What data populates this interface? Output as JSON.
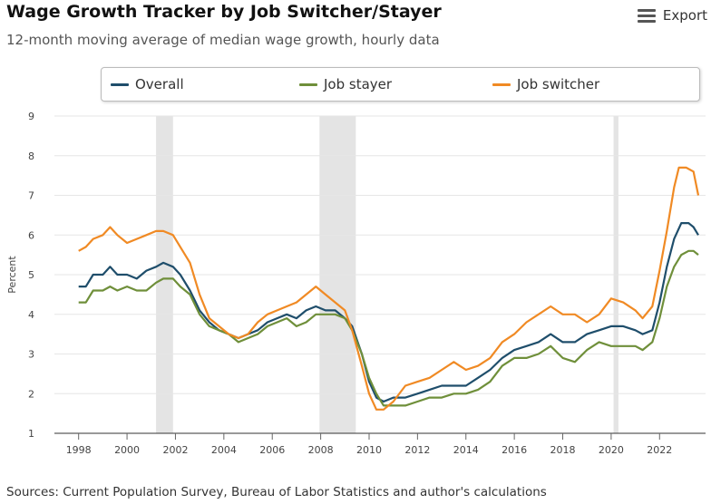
{
  "header": {
    "title": "Wage Growth Tracker by Job Switcher/Stayer",
    "subtitle": "12-month moving average of median wage growth, hourly data",
    "export_label": "Export"
  },
  "footer": {
    "source": "Sources: Current Population Survey, Bureau of Labor Statistics and author's calculations"
  },
  "colors": {
    "overall": "#1f4e6b",
    "stayer": "#6f8f3a",
    "switcher": "#f08a24",
    "recession": "#e4e4e4"
  },
  "chart_data": {
    "type": "line",
    "title": "Wage Growth Tracker by Job Switcher/Stayer",
    "subtitle": "12-month moving average of median wage growth, hourly data",
    "xlabel": "",
    "ylabel": "Percent",
    "xlim": [
      1997,
      2023.9
    ],
    "ylim": [
      1,
      9
    ],
    "x_ticks": [
      1998,
      2000,
      2002,
      2004,
      2006,
      2008,
      2010,
      2012,
      2014,
      2016,
      2018,
      2020,
      2022
    ],
    "y_ticks": [
      1,
      2,
      3,
      4,
      5,
      6,
      7,
      8,
      9
    ],
    "legend_position": "top",
    "recessions": [
      [
        2001.2,
        2001.9
      ],
      [
        2007.95,
        2009.45
      ],
      [
        2020.1,
        2020.3
      ]
    ],
    "series": [
      {
        "name": "Overall",
        "color": "#1f4e6b",
        "points": [
          [
            1998,
            4.7
          ],
          [
            1998.3,
            4.7
          ],
          [
            1998.6,
            5.0
          ],
          [
            1999,
            5.0
          ],
          [
            1999.3,
            5.2
          ],
          [
            1999.6,
            5.0
          ],
          [
            2000,
            5.0
          ],
          [
            2000.4,
            4.9
          ],
          [
            2000.8,
            5.1
          ],
          [
            2001.2,
            5.2
          ],
          [
            2001.5,
            5.3
          ],
          [
            2001.9,
            5.2
          ],
          [
            2002.2,
            5.0
          ],
          [
            2002.6,
            4.6
          ],
          [
            2003,
            4.1
          ],
          [
            2003.4,
            3.8
          ],
          [
            2003.8,
            3.6
          ],
          [
            2004.2,
            3.5
          ],
          [
            2004.6,
            3.4
          ],
          [
            2005,
            3.5
          ],
          [
            2005.4,
            3.6
          ],
          [
            2005.8,
            3.8
          ],
          [
            2006.2,
            3.9
          ],
          [
            2006.6,
            4.0
          ],
          [
            2007,
            3.9
          ],
          [
            2007.4,
            4.1
          ],
          [
            2007.8,
            4.2
          ],
          [
            2008.2,
            4.1
          ],
          [
            2008.6,
            4.1
          ],
          [
            2009,
            3.9
          ],
          [
            2009.3,
            3.7
          ],
          [
            2009.7,
            3.0
          ],
          [
            2010,
            2.3
          ],
          [
            2010.3,
            1.9
          ],
          [
            2010.6,
            1.8
          ],
          [
            2011,
            1.9
          ],
          [
            2011.5,
            1.9
          ],
          [
            2012,
            2.0
          ],
          [
            2012.5,
            2.1
          ],
          [
            2013,
            2.2
          ],
          [
            2013.5,
            2.2
          ],
          [
            2014,
            2.2
          ],
          [
            2014.5,
            2.4
          ],
          [
            2015,
            2.6
          ],
          [
            2015.5,
            2.9
          ],
          [
            2016,
            3.1
          ],
          [
            2016.5,
            3.2
          ],
          [
            2017,
            3.3
          ],
          [
            2017.5,
            3.5
          ],
          [
            2018,
            3.3
          ],
          [
            2018.5,
            3.3
          ],
          [
            2019,
            3.5
          ],
          [
            2019.5,
            3.6
          ],
          [
            2020,
            3.7
          ],
          [
            2020.5,
            3.7
          ],
          [
            2021,
            3.6
          ],
          [
            2021.3,
            3.5
          ],
          [
            2021.7,
            3.6
          ],
          [
            2022,
            4.3
          ],
          [
            2022.3,
            5.2
          ],
          [
            2022.6,
            5.9
          ],
          [
            2022.9,
            6.3
          ],
          [
            2023.2,
            6.3
          ],
          [
            2023.4,
            6.2
          ],
          [
            2023.6,
            6.0
          ]
        ]
      },
      {
        "name": "Job stayer",
        "color": "#6f8f3a",
        "points": [
          [
            1998,
            4.3
          ],
          [
            1998.3,
            4.3
          ],
          [
            1998.6,
            4.6
          ],
          [
            1999,
            4.6
          ],
          [
            1999.3,
            4.7
          ],
          [
            1999.6,
            4.6
          ],
          [
            2000,
            4.7
          ],
          [
            2000.4,
            4.6
          ],
          [
            2000.8,
            4.6
          ],
          [
            2001.2,
            4.8
          ],
          [
            2001.5,
            4.9
          ],
          [
            2001.9,
            4.9
          ],
          [
            2002.2,
            4.7
          ],
          [
            2002.6,
            4.5
          ],
          [
            2003,
            4.0
          ],
          [
            2003.4,
            3.7
          ],
          [
            2003.8,
            3.6
          ],
          [
            2004.2,
            3.5
          ],
          [
            2004.6,
            3.3
          ],
          [
            2005,
            3.4
          ],
          [
            2005.4,
            3.5
          ],
          [
            2005.8,
            3.7
          ],
          [
            2006.2,
            3.8
          ],
          [
            2006.6,
            3.9
          ],
          [
            2007,
            3.7
          ],
          [
            2007.4,
            3.8
          ],
          [
            2007.8,
            4.0
          ],
          [
            2008.2,
            4.0
          ],
          [
            2008.6,
            4.0
          ],
          [
            2009,
            3.9
          ],
          [
            2009.3,
            3.6
          ],
          [
            2009.7,
            3.0
          ],
          [
            2010,
            2.4
          ],
          [
            2010.3,
            2.0
          ],
          [
            2010.6,
            1.7
          ],
          [
            2011,
            1.7
          ],
          [
            2011.5,
            1.7
          ],
          [
            2012,
            1.8
          ],
          [
            2012.5,
            1.9
          ],
          [
            2013,
            1.9
          ],
          [
            2013.5,
            2.0
          ],
          [
            2014,
            2.0
          ],
          [
            2014.5,
            2.1
          ],
          [
            2015,
            2.3
          ],
          [
            2015.5,
            2.7
          ],
          [
            2016,
            2.9
          ],
          [
            2016.5,
            2.9
          ],
          [
            2017,
            3.0
          ],
          [
            2017.5,
            3.2
          ],
          [
            2018,
            2.9
          ],
          [
            2018.5,
            2.8
          ],
          [
            2019,
            3.1
          ],
          [
            2019.5,
            3.3
          ],
          [
            2020,
            3.2
          ],
          [
            2020.5,
            3.2
          ],
          [
            2021,
            3.2
          ],
          [
            2021.3,
            3.1
          ],
          [
            2021.7,
            3.3
          ],
          [
            2022,
            3.9
          ],
          [
            2022.3,
            4.7
          ],
          [
            2022.6,
            5.2
          ],
          [
            2022.9,
            5.5
          ],
          [
            2023.2,
            5.6
          ],
          [
            2023.4,
            5.6
          ],
          [
            2023.6,
            5.5
          ]
        ]
      },
      {
        "name": "Job switcher",
        "color": "#f08a24",
        "points": [
          [
            1998,
            5.6
          ],
          [
            1998.3,
            5.7
          ],
          [
            1998.6,
            5.9
          ],
          [
            1999,
            6.0
          ],
          [
            1999.3,
            6.2
          ],
          [
            1999.6,
            6.0
          ],
          [
            2000,
            5.8
          ],
          [
            2000.4,
            5.9
          ],
          [
            2000.8,
            6.0
          ],
          [
            2001.2,
            6.1
          ],
          [
            2001.5,
            6.1
          ],
          [
            2001.9,
            6.0
          ],
          [
            2002.2,
            5.7
          ],
          [
            2002.6,
            5.3
          ],
          [
            2003,
            4.5
          ],
          [
            2003.4,
            3.9
          ],
          [
            2003.8,
            3.7
          ],
          [
            2004.2,
            3.5
          ],
          [
            2004.6,
            3.4
          ],
          [
            2005,
            3.5
          ],
          [
            2005.4,
            3.8
          ],
          [
            2005.8,
            4.0
          ],
          [
            2006.2,
            4.1
          ],
          [
            2006.6,
            4.2
          ],
          [
            2007,
            4.3
          ],
          [
            2007.4,
            4.5
          ],
          [
            2007.8,
            4.7
          ],
          [
            2008.2,
            4.5
          ],
          [
            2008.6,
            4.3
          ],
          [
            2009,
            4.1
          ],
          [
            2009.3,
            3.6
          ],
          [
            2009.7,
            2.7
          ],
          [
            2010,
            2.0
          ],
          [
            2010.3,
            1.6
          ],
          [
            2010.6,
            1.6
          ],
          [
            2011,
            1.8
          ],
          [
            2011.5,
            2.2
          ],
          [
            2012,
            2.3
          ],
          [
            2012.5,
            2.4
          ],
          [
            2013,
            2.6
          ],
          [
            2013.5,
            2.8
          ],
          [
            2014,
            2.6
          ],
          [
            2014.5,
            2.7
          ],
          [
            2015,
            2.9
          ],
          [
            2015.5,
            3.3
          ],
          [
            2016,
            3.5
          ],
          [
            2016.5,
            3.8
          ],
          [
            2017,
            4.0
          ],
          [
            2017.5,
            4.2
          ],
          [
            2018,
            4.0
          ],
          [
            2018.5,
            4.0
          ],
          [
            2019,
            3.8
          ],
          [
            2019.5,
            4.0
          ],
          [
            2020,
            4.4
          ],
          [
            2020.5,
            4.3
          ],
          [
            2021,
            4.1
          ],
          [
            2021.3,
            3.9
          ],
          [
            2021.7,
            4.2
          ],
          [
            2022,
            5.1
          ],
          [
            2022.3,
            6.1
          ],
          [
            2022.6,
            7.2
          ],
          [
            2022.8,
            7.7
          ],
          [
            2023.1,
            7.7
          ],
          [
            2023.4,
            7.6
          ],
          [
            2023.6,
            7.0
          ]
        ]
      }
    ]
  }
}
